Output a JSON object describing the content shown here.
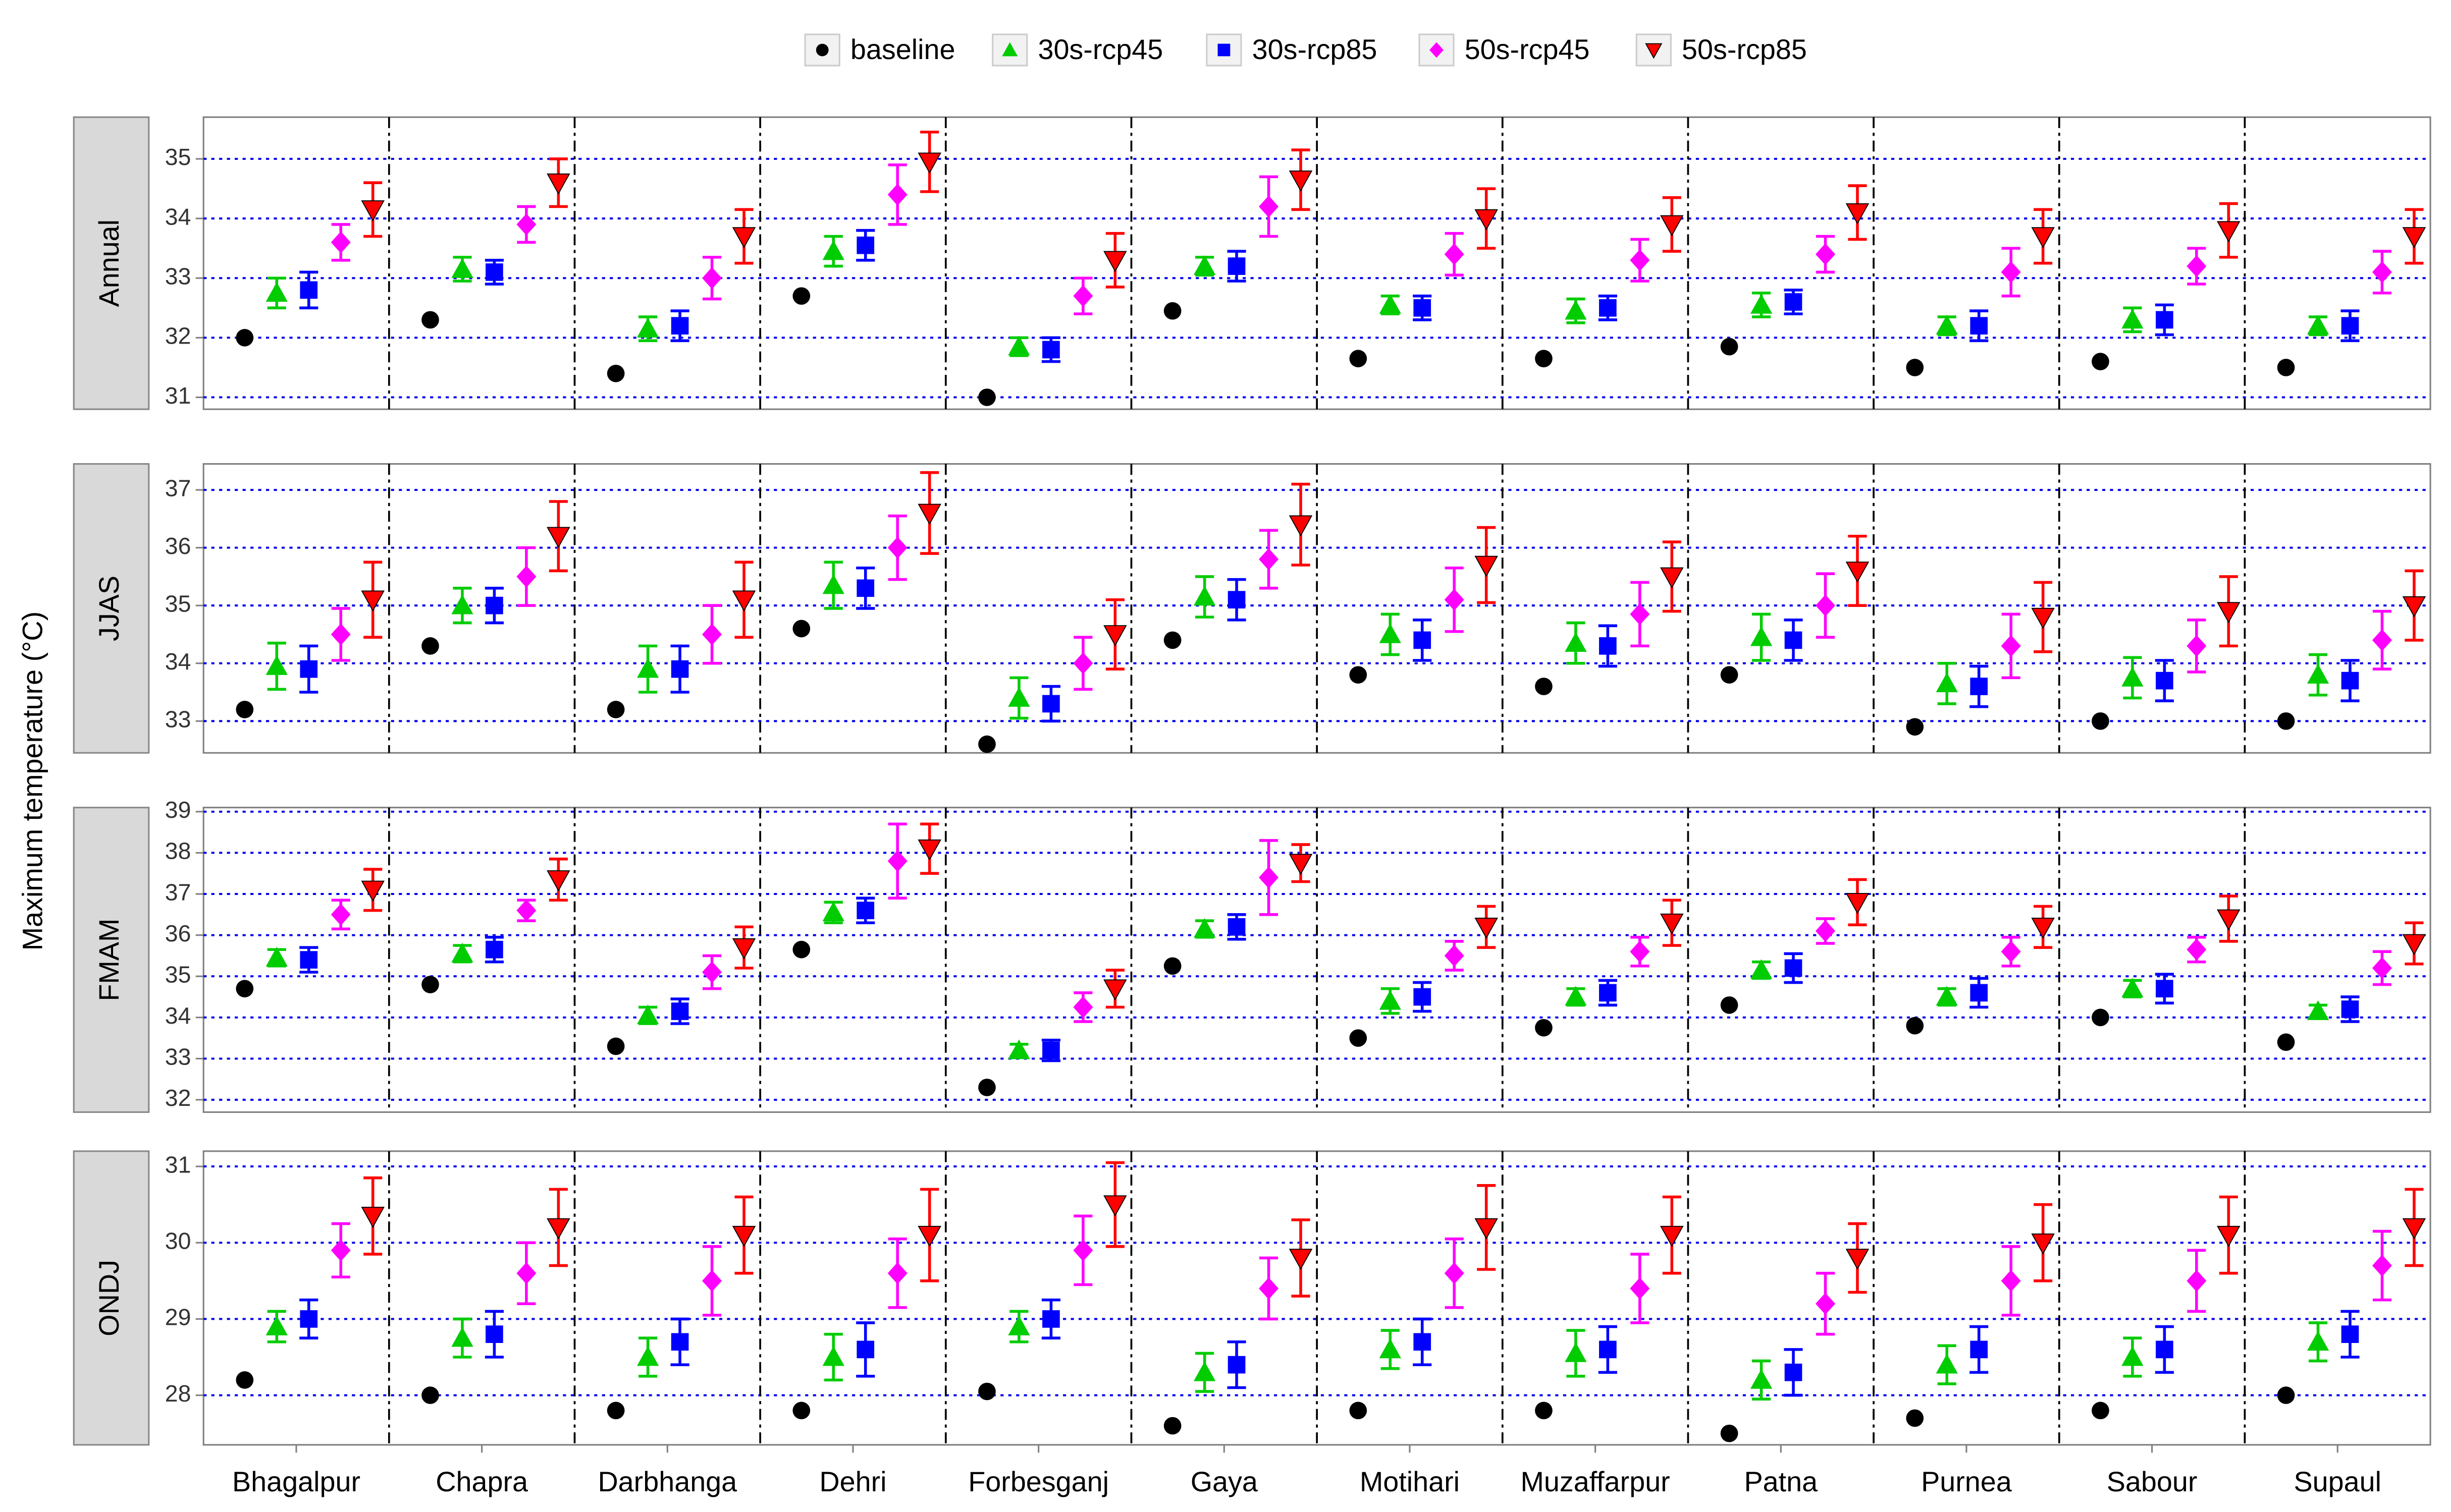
{
  "chart_data": {
    "type": "point-errorbar",
    "y_label": "Maximum temperature (°C)",
    "grid": true,
    "categories": [
      "Bhagalpur",
      "Chapra",
      "Darbhanga",
      "Dehri",
      "Forbesganj",
      "Gaya",
      "Motihari",
      "Muzaffarpur",
      "Patna",
      "Purnea",
      "Sabour",
      "Supaul"
    ],
    "series": [
      {
        "name": "baseline",
        "color": "#000000",
        "marker": "circle"
      },
      {
        "name": "30s-rcp45",
        "color": "#00cc00",
        "marker": "triangle-up"
      },
      {
        "name": "30s-rcp85",
        "color": "#0000ff",
        "marker": "square"
      },
      {
        "name": "50s-rcp45",
        "color": "#ff00ff",
        "marker": "diamond"
      },
      {
        "name": "50s-rcp85",
        "color": "#ff0000",
        "marker": "triangle-down"
      }
    ],
    "panels": [
      {
        "title": "Annual",
        "ylim": [
          30.8,
          35.7
        ],
        "yticks": [
          31,
          32,
          33,
          34,
          35
        ],
        "series": [
          {
            "values": [
              32.0,
              32.3,
              31.4,
              32.7,
              31.0,
              32.45,
              31.65,
              31.65,
              31.85,
              31.5,
              31.6,
              31.5
            ]
          },
          {
            "values": [
              32.75,
              33.15,
              32.15,
              33.45,
              31.85,
              33.2,
              32.55,
              32.45,
              32.55,
              32.2,
              32.3,
              32.2
            ],
            "errors": [
              0.25,
              0.2,
              0.2,
              0.25,
              0.15,
              0.15,
              0.15,
              0.2,
              0.2,
              0.15,
              0.2,
              0.15
            ]
          },
          {
            "values": [
              32.8,
              33.1,
              32.2,
              33.55,
              31.8,
              33.2,
              32.5,
              32.5,
              32.6,
              32.2,
              32.3,
              32.2
            ],
            "errors": [
              0.3,
              0.2,
              0.25,
              0.25,
              0.2,
              0.25,
              0.2,
              0.2,
              0.2,
              0.25,
              0.25,
              0.25
            ]
          },
          {
            "values": [
              33.6,
              33.9,
              33.0,
              34.4,
              32.7,
              34.2,
              33.4,
              33.3,
              33.4,
              33.1,
              33.2,
              33.1
            ],
            "errors": [
              0.3,
              0.3,
              0.35,
              0.5,
              0.3,
              0.5,
              0.35,
              0.35,
              0.3,
              0.4,
              0.3,
              0.35
            ]
          },
          {
            "values": [
              34.15,
              34.6,
              33.7,
              34.95,
              33.3,
              34.65,
              34.0,
              33.9,
              34.1,
              33.7,
              33.8,
              33.7
            ],
            "errors": [
              0.45,
              0.4,
              0.45,
              0.5,
              0.45,
              0.5,
              0.5,
              0.45,
              0.45,
              0.45,
              0.45,
              0.45
            ]
          }
        ]
      },
      {
        "title": "JJAS",
        "ylim": [
          32.45,
          37.45
        ],
        "yticks": [
          33,
          34,
          35,
          36,
          37
        ],
        "series": [
          {
            "values": [
              33.2,
              34.3,
              33.2,
              34.6,
              32.6,
              34.4,
              33.8,
              33.6,
              33.8,
              32.9,
              33.0,
              33.0
            ]
          },
          {
            "values": [
              33.95,
              35.0,
              33.9,
              35.35,
              33.4,
              35.15,
              34.5,
              34.35,
              34.45,
              33.65,
              33.75,
              33.8
            ],
            "errors": [
              0.4,
              0.3,
              0.4,
              0.4,
              0.35,
              0.35,
              0.35,
              0.35,
              0.4,
              0.35,
              0.35,
              0.35
            ]
          },
          {
            "values": [
              33.9,
              35.0,
              33.9,
              35.3,
              33.3,
              35.1,
              34.4,
              34.3,
              34.4,
              33.6,
              33.7,
              33.7
            ],
            "errors": [
              0.4,
              0.3,
              0.4,
              0.35,
              0.3,
              0.35,
              0.35,
              0.35,
              0.35,
              0.35,
              0.35,
              0.35
            ]
          },
          {
            "values": [
              34.5,
              35.5,
              34.5,
              36.0,
              34.0,
              35.8,
              35.1,
              34.85,
              35.0,
              34.3,
              34.3,
              34.4
            ],
            "errors": [
              0.45,
              0.5,
              0.5,
              0.55,
              0.45,
              0.5,
              0.55,
              0.55,
              0.55,
              0.55,
              0.45,
              0.5
            ]
          },
          {
            "values": [
              35.1,
              36.2,
              35.1,
              36.6,
              34.5,
              36.4,
              35.7,
              35.5,
              35.6,
              34.8,
              34.9,
              35.0
            ],
            "errors": [
              0.65,
              0.6,
              0.65,
              0.7,
              0.6,
              0.7,
              0.65,
              0.6,
              0.6,
              0.6,
              0.6,
              0.6
            ]
          }
        ]
      },
      {
        "title": "FMAM",
        "ylim": [
          31.7,
          39.1
        ],
        "yticks": [
          32,
          33,
          34,
          35,
          36,
          37,
          38,
          39
        ],
        "series": [
          {
            "values": [
              34.7,
              34.8,
              33.3,
              35.65,
              32.3,
              35.25,
              33.5,
              33.75,
              34.3,
              33.8,
              34.0,
              33.4
            ]
          },
          {
            "values": [
              35.45,
              35.55,
              34.05,
              36.55,
              33.2,
              36.15,
              34.4,
              34.5,
              35.15,
              34.5,
              34.7,
              34.15
            ],
            "errors": [
              0.2,
              0.2,
              0.2,
              0.25,
              0.15,
              0.2,
              0.3,
              0.2,
              0.2,
              0.2,
              0.2,
              0.15
            ]
          },
          {
            "values": [
              35.4,
              35.65,
              34.15,
              36.6,
              33.2,
              36.2,
              34.5,
              34.6,
              35.2,
              34.6,
              34.7,
              34.2
            ],
            "errors": [
              0.3,
              0.3,
              0.3,
              0.3,
              0.25,
              0.3,
              0.35,
              0.3,
              0.35,
              0.35,
              0.35,
              0.3
            ]
          },
          {
            "values": [
              36.5,
              36.6,
              35.1,
              37.8,
              34.25,
              37.4,
              35.5,
              35.6,
              36.1,
              35.6,
              35.65,
              35.2
            ],
            "errors": [
              0.35,
              0.25,
              0.4,
              0.9,
              0.35,
              0.9,
              0.35,
              0.35,
              0.3,
              0.35,
              0.3,
              0.4
            ]
          },
          {
            "values": [
              37.1,
              37.35,
              35.7,
              38.1,
              34.7,
              37.75,
              36.2,
              36.3,
              36.8,
              36.2,
              36.4,
              35.8
            ],
            "errors": [
              0.5,
              0.5,
              0.5,
              0.6,
              0.45,
              0.45,
              0.5,
              0.55,
              0.55,
              0.5,
              0.55,
              0.5
            ]
          }
        ]
      },
      {
        "title": "ONDJ",
        "ylim": [
          27.35,
          31.2
        ],
        "yticks": [
          28,
          29,
          30,
          31
        ],
        "series": [
          {
            "values": [
              28.2,
              28.0,
              27.8,
              27.8,
              28.05,
              27.6,
              27.8,
              27.8,
              27.5,
              27.7,
              27.8,
              28.0
            ]
          },
          {
            "values": [
              28.9,
              28.75,
              28.5,
              28.5,
              28.9,
              28.3,
              28.6,
              28.55,
              28.2,
              28.4,
              28.5,
              28.7
            ],
            "errors": [
              0.2,
              0.25,
              0.25,
              0.3,
              0.2,
              0.25,
              0.25,
              0.3,
              0.25,
              0.25,
              0.25,
              0.25
            ]
          },
          {
            "values": [
              29.0,
              28.8,
              28.7,
              28.6,
              29.0,
              28.4,
              28.7,
              28.6,
              28.3,
              28.6,
              28.6,
              28.8
            ],
            "errors": [
              0.25,
              0.3,
              0.3,
              0.35,
              0.25,
              0.3,
              0.3,
              0.3,
              0.3,
              0.3,
              0.3,
              0.3
            ]
          },
          {
            "values": [
              29.9,
              29.6,
              29.5,
              29.6,
              29.9,
              29.4,
              29.6,
              29.4,
              29.2,
              29.5,
              29.5,
              29.7
            ],
            "errors": [
              0.35,
              0.4,
              0.45,
              0.45,
              0.45,
              0.4,
              0.45,
              0.45,
              0.4,
              0.45,
              0.4,
              0.45
            ]
          },
          {
            "values": [
              30.35,
              30.2,
              30.1,
              30.1,
              30.5,
              29.8,
              30.2,
              30.1,
              29.8,
              30.0,
              30.1,
              30.2
            ],
            "errors": [
              0.5,
              0.5,
              0.5,
              0.6,
              0.55,
              0.5,
              0.55,
              0.5,
              0.45,
              0.5,
              0.5,
              0.5
            ]
          }
        ]
      }
    ]
  }
}
